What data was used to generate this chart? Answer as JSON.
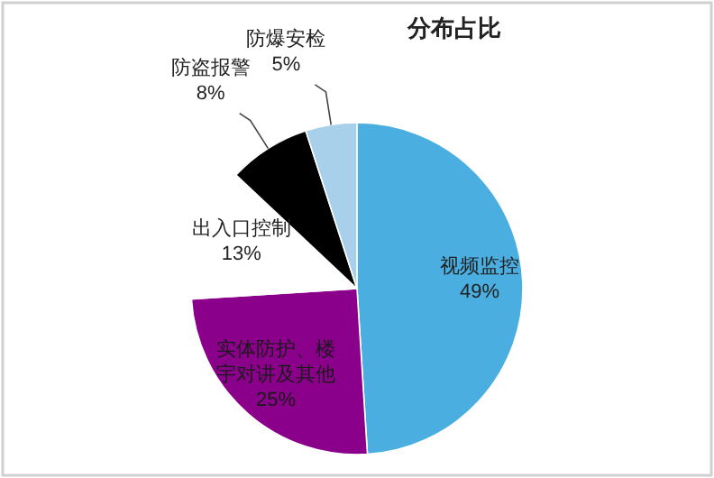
{
  "chart_data": {
    "type": "pie",
    "title": "分布占比",
    "categories": [
      "视频监控",
      "实体防护、楼宇对讲及其他",
      "出入口控制",
      "防盗报警",
      "防爆安检"
    ],
    "values": [
      49,
      25,
      13,
      8,
      5
    ],
    "value_labels": [
      "49%",
      "25%",
      "13%",
      "8%",
      "5%"
    ],
    "colors": [
      "#4aafe0",
      "#8b008b",
      "#ffffff",
      "#000000",
      "#a9d0ea"
    ],
    "legend": false
  }
}
